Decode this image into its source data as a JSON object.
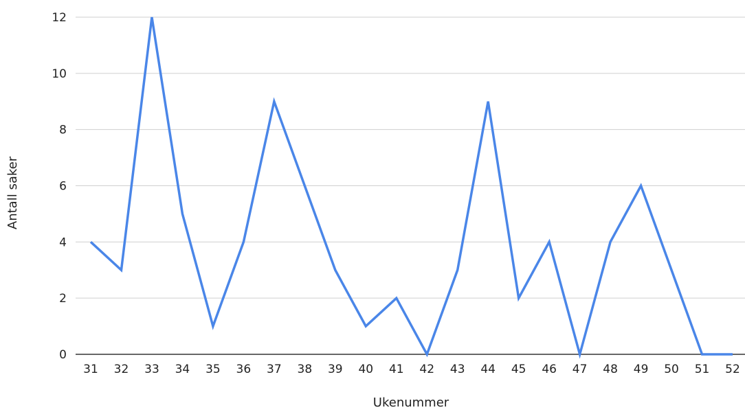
{
  "chart_data": {
    "type": "line",
    "title": "",
    "xlabel": "Ukenummer",
    "ylabel": "Antall saker",
    "categories": [
      "31",
      "32",
      "33",
      "34",
      "35",
      "36",
      "37",
      "38",
      "39",
      "40",
      "41",
      "42",
      "43",
      "44",
      "45",
      "46",
      "47",
      "48",
      "49",
      "50",
      "51",
      "52"
    ],
    "series": [
      {
        "values": [
          4,
          3,
          12,
          5,
          1,
          4,
          9,
          6,
          3,
          1,
          2,
          0,
          3,
          9,
          2,
          4,
          0,
          4,
          6,
          3,
          0,
          0
        ]
      }
    ],
    "ylim": [
      0,
      12
    ],
    "yticks": [
      "0",
      "2",
      "4",
      "6",
      "8",
      "10",
      "12"
    ],
    "grid": true,
    "legend": "none",
    "colors": {
      "line": "#4a86e8"
    }
  }
}
